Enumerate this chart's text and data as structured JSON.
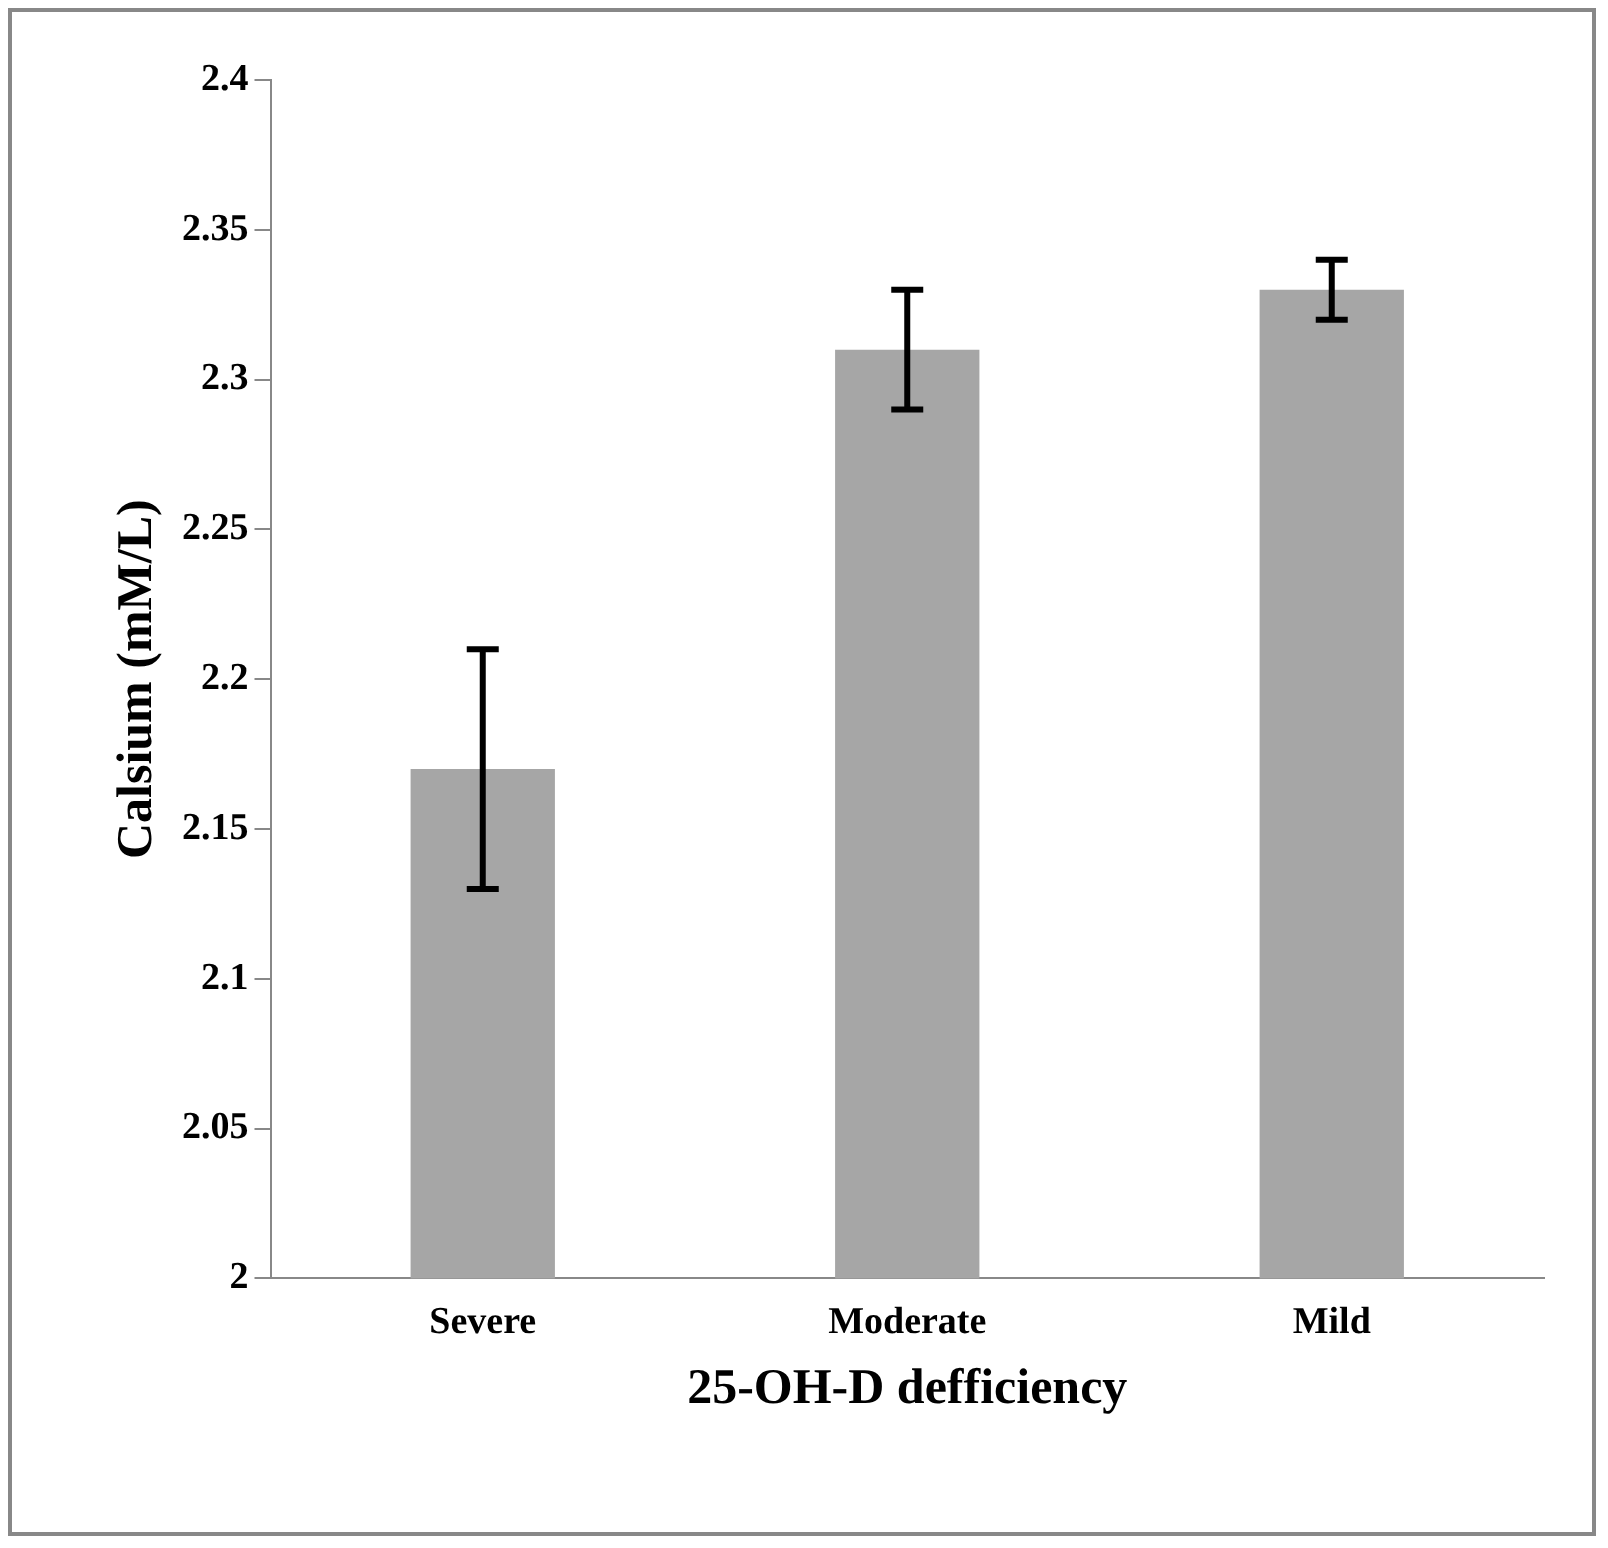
{
  "chart_data": {
    "type": "bar",
    "xlabel": "25-OH-D defficiency",
    "ylabel": "Calsium (mM/L)",
    "categories": [
      "Severe",
      "Moderate",
      "Mild"
    ],
    "values": [
      2.17,
      2.31,
      2.33
    ],
    "errors": [
      0.04,
      0.02,
      0.01
    ],
    "color": "#a6a6a6",
    "ylim": [
      2,
      2.4
    ],
    "yticks": [
      2,
      2.05,
      2.1,
      2.15,
      2.2,
      2.25,
      2.3,
      2.35,
      2.4
    ],
    "grid": false,
    "legend": false
  }
}
